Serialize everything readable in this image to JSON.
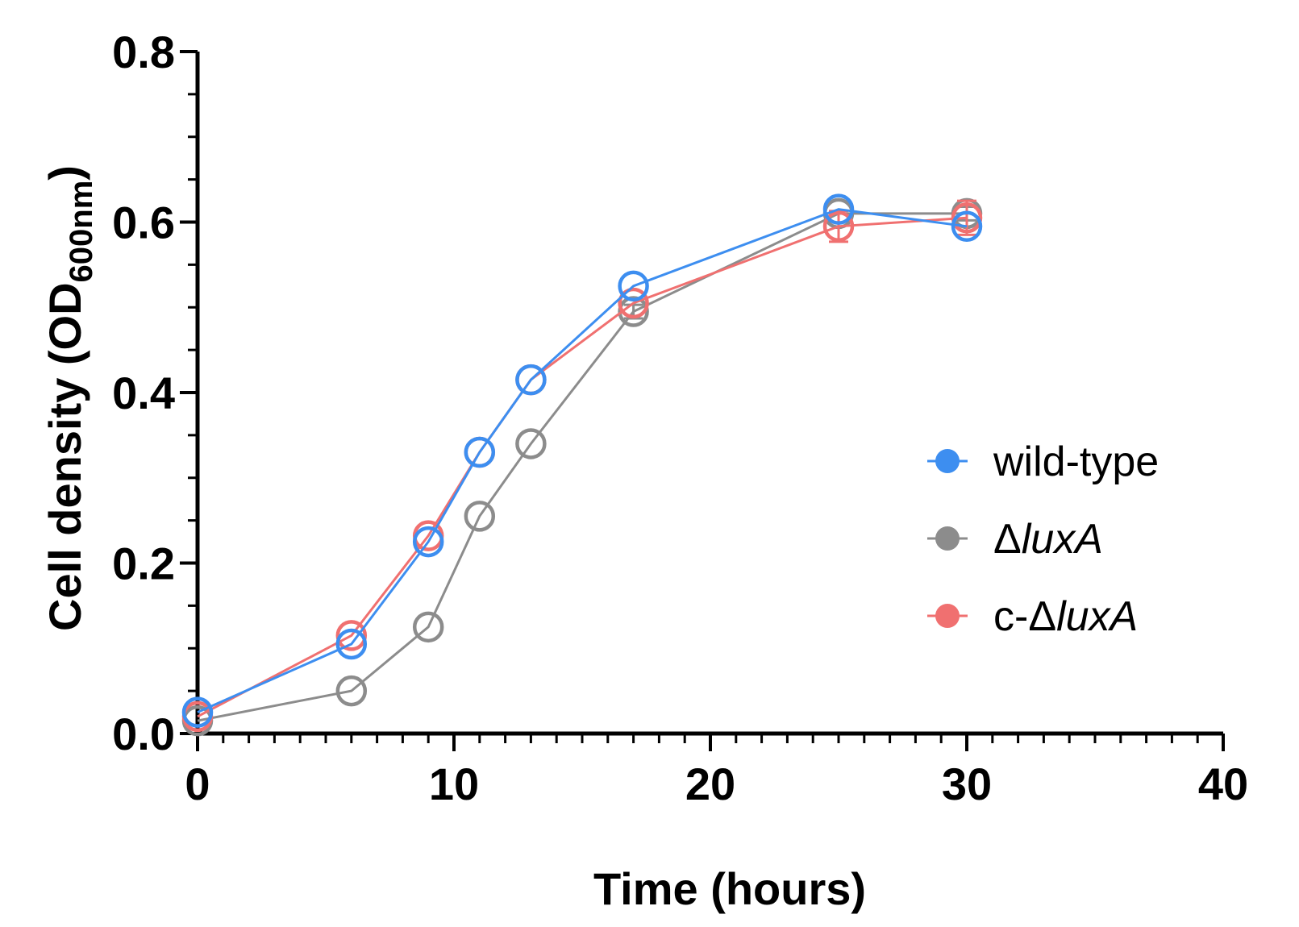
{
  "chart_data": {
    "type": "line",
    "title": "",
    "xlabel": "Time (hours)",
    "ylabel": {
      "prefix": "Cell density (OD",
      "subscript": "600nm",
      "suffix": ")"
    },
    "xlim": [
      0,
      40
    ],
    "ylim": [
      0,
      0.8
    ],
    "x_ticks": [
      0,
      10,
      20,
      30,
      40
    ],
    "x_tick_labels": [
      "0",
      "10",
      "20",
      "30",
      "40"
    ],
    "y_ticks": [
      0,
      0.2,
      0.4,
      0.6,
      0.8
    ],
    "y_tick_labels": [
      "0.0",
      "0.2",
      "0.4",
      "0.6",
      "0.8"
    ],
    "x_minor_step": 1,
    "y_minor_step": 0.05,
    "grid": false,
    "legend_position": "right",
    "series": [
      {
        "name": "ΔluxA",
        "legend": {
          "prefix": "Δ",
          "italic": "luxA"
        },
        "color": "#8c8c8c",
        "x": [
          0,
          6,
          9,
          11,
          13,
          17,
          25,
          30
        ],
        "y": [
          0.015,
          0.05,
          0.125,
          0.255,
          0.34,
          0.495,
          0.61,
          0.61
        ],
        "err": [
          0,
          0,
          0,
          0,
          0,
          0.008,
          0,
          0.008
        ]
      },
      {
        "name": "c-ΔluxA",
        "legend": {
          "prefix": "c-Δ",
          "italic": "luxA"
        },
        "color": "#f07070",
        "x": [
          0,
          6,
          9,
          11,
          13,
          17,
          25,
          30
        ],
        "y": [
          0.02,
          0.115,
          0.232,
          0.33,
          0.415,
          0.505,
          0.595,
          0.605
        ],
        "err": [
          0,
          0,
          0,
          0,
          0,
          0,
          0.018,
          0.02
        ]
      },
      {
        "name": "wild-type",
        "legend": {
          "prefix": "wild-type",
          "italic": ""
        },
        "color": "#3d8ef0",
        "x": [
          0,
          6,
          9,
          11,
          13,
          17,
          25,
          30
        ],
        "y": [
          0.025,
          0.105,
          0.225,
          0.33,
          0.415,
          0.525,
          0.615,
          0.595
        ],
        "err": [
          0,
          0,
          0,
          0,
          0,
          0,
          0,
          0
        ]
      }
    ],
    "legend_order": [
      2,
      0,
      1
    ]
  }
}
